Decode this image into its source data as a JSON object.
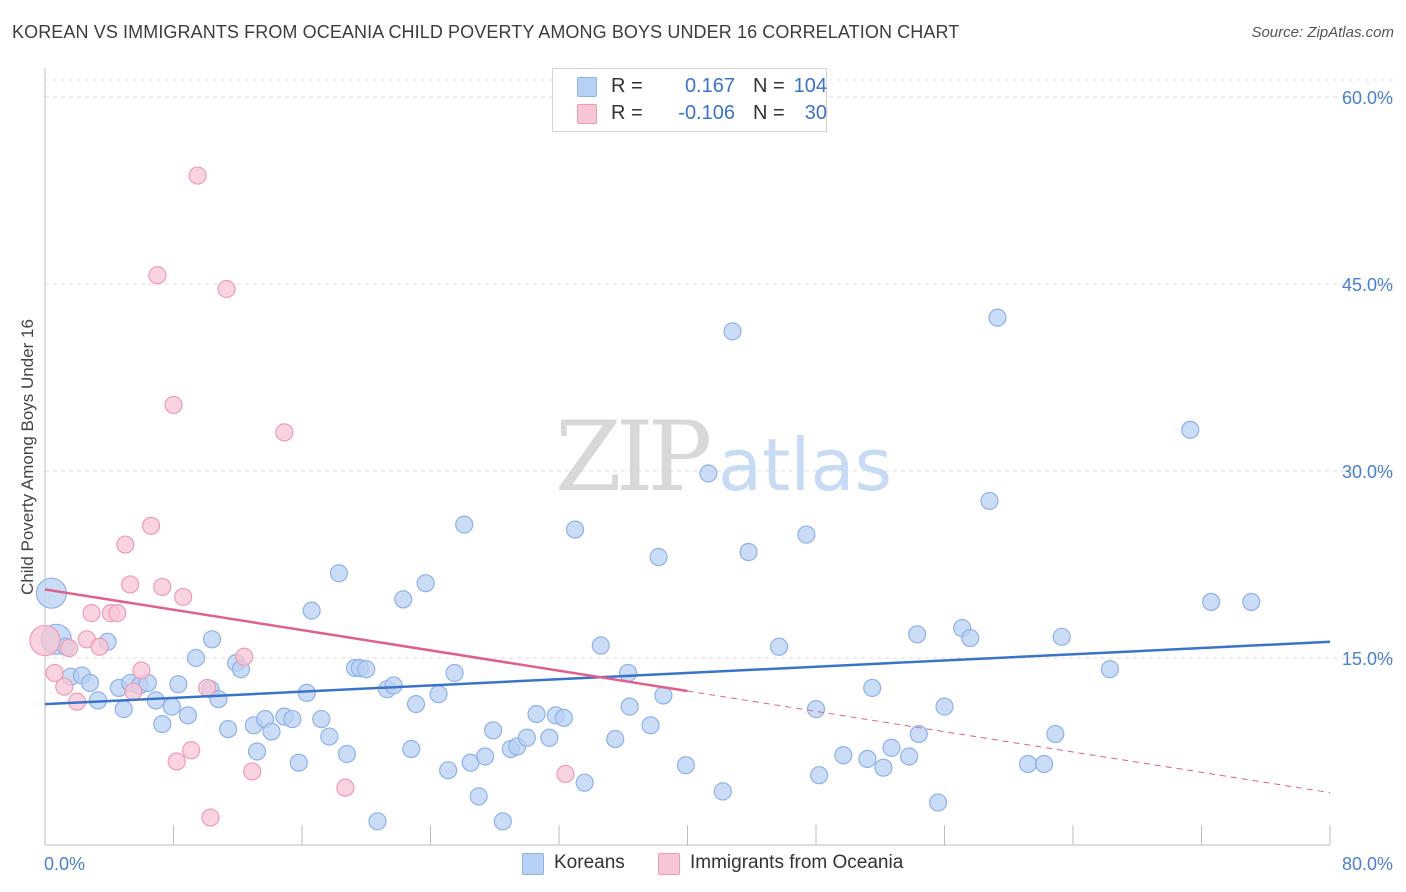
{
  "header": {
    "title": "KOREAN VS IMMIGRANTS FROM OCEANIA CHILD POVERTY AMONG BOYS UNDER 16 CORRELATION CHART",
    "source": "Source: ZipAtlas.com"
  },
  "watermark": {
    "zip": "ZIP",
    "atlas": "atlas"
  },
  "legend": {
    "rows": [
      {
        "r_label": "R =",
        "r_value": "0.167",
        "n_label": "N =",
        "n_value": "104",
        "color": "#b8d0f3",
        "border": "#8fb2e8"
      },
      {
        "r_label": "R =",
        "r_value": "-0.106",
        "n_label": "N =",
        "n_value": "30",
        "color": "#f7c6d5",
        "border": "#ee9cb6"
      }
    ]
  },
  "chart_data": {
    "type": "scatter",
    "title": "KOREAN VS IMMIGRANTS FROM OCEANIA CHILD POVERTY AMONG BOYS UNDER 16 CORRELATION CHART",
    "xlabel": "",
    "ylabel": "Child Poverty Among Boys Under 16",
    "xlim": [
      0,
      80
    ],
    "ylim": [
      0,
      60
    ],
    "x_tick_labels": [
      "0.0%",
      "80.0%"
    ],
    "y_ticks": [
      15,
      30,
      45,
      60
    ],
    "y_tick_labels": [
      "15.0%",
      "30.0%",
      "45.0%",
      "60.0%"
    ],
    "grid": true,
    "legend_position": "top-center",
    "series": [
      {
        "name": "Koreans",
        "color": "#8fb2e8",
        "fill": "#b8d0f3",
        "trend": {
          "x": [
            0,
            80
          ],
          "y": [
            11.3,
            16.3
          ],
          "color": "#3b73c9",
          "dashed_from": null
        },
        "points": [
          [
            0.4,
            20.2,
            1
          ],
          [
            0.7,
            16.5,
            1
          ],
          [
            1.3,
            15.9,
            0
          ],
          [
            1.6,
            13.5,
            0
          ],
          [
            2.3,
            13.6,
            0
          ],
          [
            2.8,
            13.0,
            0
          ],
          [
            3.3,
            11.6,
            0
          ],
          [
            3.9,
            16.3,
            0
          ],
          [
            4.6,
            12.6,
            0
          ],
          [
            4.9,
            10.9,
            0
          ],
          [
            5.3,
            13.0,
            0
          ],
          [
            5.9,
            12.8,
            0
          ],
          [
            6.4,
            13.0,
            0
          ],
          [
            6.9,
            11.6,
            0
          ],
          [
            7.3,
            9.7,
            0
          ],
          [
            7.9,
            11.1,
            0
          ],
          [
            8.3,
            12.9,
            0
          ],
          [
            8.9,
            10.4,
            0
          ],
          [
            9.4,
            15.0,
            0
          ],
          [
            10.3,
            12.5,
            0
          ],
          [
            10.4,
            16.5,
            0
          ],
          [
            10.8,
            11.7,
            0
          ],
          [
            11.4,
            9.3,
            0
          ],
          [
            11.9,
            14.6,
            0
          ],
          [
            12.2,
            14.1,
            0
          ],
          [
            13.0,
            9.6,
            0
          ],
          [
            13.2,
            7.5,
            0
          ],
          [
            13.7,
            10.1,
            0
          ],
          [
            14.1,
            9.1,
            0
          ],
          [
            14.9,
            10.3,
            0
          ],
          [
            15.4,
            10.1,
            0
          ],
          [
            15.8,
            6.6,
            0
          ],
          [
            16.3,
            12.2,
            0
          ],
          [
            16.6,
            18.8,
            0
          ],
          [
            17.2,
            10.1,
            0
          ],
          [
            17.7,
            8.7,
            0
          ],
          [
            18.3,
            21.8,
            0
          ],
          [
            18.8,
            7.3,
            0
          ],
          [
            19.3,
            14.2,
            0
          ],
          [
            19.6,
            14.2,
            0
          ],
          [
            20.0,
            14.1,
            0
          ],
          [
            20.7,
            1.9,
            0
          ],
          [
            21.3,
            12.5,
            0
          ],
          [
            21.7,
            12.8,
            0
          ],
          [
            22.3,
            19.7,
            0
          ],
          [
            22.8,
            7.7,
            0
          ],
          [
            23.1,
            11.3,
            0
          ],
          [
            23.7,
            21.0,
            0
          ],
          [
            24.5,
            12.1,
            0
          ],
          [
            25.1,
            6.0,
            0
          ],
          [
            25.5,
            13.8,
            0
          ],
          [
            26.1,
            25.7,
            0
          ],
          [
            26.5,
            6.6,
            0
          ],
          [
            27.0,
            3.9,
            0
          ],
          [
            27.4,
            7.1,
            0
          ],
          [
            27.9,
            9.2,
            0
          ],
          [
            28.5,
            1.9,
            0
          ],
          [
            29.0,
            7.7,
            0
          ],
          [
            29.4,
            7.9,
            0
          ],
          [
            30.0,
            8.6,
            0
          ],
          [
            30.6,
            10.5,
            0
          ],
          [
            31.4,
            8.6,
            0
          ],
          [
            31.8,
            10.4,
            0
          ],
          [
            32.3,
            10.2,
            0
          ],
          [
            33.0,
            25.3,
            0
          ],
          [
            33.6,
            5.0,
            0
          ],
          [
            34.6,
            16.0,
            0
          ],
          [
            35.5,
            8.5,
            0
          ],
          [
            36.3,
            13.8,
            0
          ],
          [
            36.4,
            11.1,
            0
          ],
          [
            37.7,
            9.6,
            0
          ],
          [
            38.2,
            23.1,
            0
          ],
          [
            38.5,
            12.0,
            0
          ],
          [
            39.9,
            6.4,
            0
          ],
          [
            41.3,
            29.8,
            0
          ],
          [
            42.2,
            4.3,
            0
          ],
          [
            42.8,
            41.2,
            0
          ],
          [
            43.8,
            23.5,
            0
          ],
          [
            45.7,
            15.9,
            0
          ],
          [
            47.4,
            24.9,
            0
          ],
          [
            48.0,
            10.9,
            0
          ],
          [
            48.2,
            5.6,
            0
          ],
          [
            49.7,
            7.2,
            0
          ],
          [
            51.2,
            6.9,
            0
          ],
          [
            51.5,
            12.6,
            0
          ],
          [
            52.2,
            6.2,
            0
          ],
          [
            52.7,
            7.8,
            0
          ],
          [
            53.8,
            7.1,
            0
          ],
          [
            54.3,
            16.9,
            0
          ],
          [
            54.4,
            8.9,
            0
          ],
          [
            55.6,
            3.4,
            0
          ],
          [
            56.0,
            11.1,
            0
          ],
          [
            57.1,
            17.4,
            0
          ],
          [
            57.6,
            16.6,
            0
          ],
          [
            58.8,
            27.6,
            0
          ],
          [
            59.3,
            42.3,
            0
          ],
          [
            61.2,
            6.5,
            0
          ],
          [
            62.2,
            6.5,
            0
          ],
          [
            62.9,
            8.9,
            0
          ],
          [
            63.3,
            16.7,
            0
          ],
          [
            66.3,
            14.1,
            0
          ],
          [
            71.3,
            33.3,
            0
          ],
          [
            72.6,
            19.5,
            0
          ],
          [
            75.1,
            19.5,
            0
          ]
        ]
      },
      {
        "name": "Immigrants from Oceania",
        "color": "#ee9cb6",
        "fill": "#f7c6d5",
        "trend": {
          "x": [
            0,
            80
          ],
          "y": [
            20.5,
            4.2
          ],
          "color": "#e0608c",
          "dashed_from": 40
        },
        "points": [
          [
            0.0,
            16.4,
            1
          ],
          [
            0.6,
            13.8,
            0
          ],
          [
            1.2,
            12.7,
            0
          ],
          [
            1.5,
            15.8,
            0
          ],
          [
            2.0,
            11.5,
            0
          ],
          [
            2.6,
            16.5,
            0
          ],
          [
            2.9,
            18.6,
            0
          ],
          [
            3.4,
            15.9,
            0
          ],
          [
            4.1,
            18.6,
            0
          ],
          [
            4.5,
            18.6,
            0
          ],
          [
            5.0,
            24.1,
            0
          ],
          [
            5.3,
            20.9,
            0
          ],
          [
            5.5,
            12.3,
            0
          ],
          [
            6.0,
            14.0,
            0
          ],
          [
            6.6,
            25.6,
            0
          ],
          [
            7.0,
            45.7,
            0
          ],
          [
            7.3,
            20.7,
            0
          ],
          [
            8.0,
            35.3,
            0
          ],
          [
            8.2,
            6.7,
            0
          ],
          [
            8.6,
            19.9,
            0
          ],
          [
            9.1,
            7.6,
            0
          ],
          [
            9.5,
            53.7,
            0
          ],
          [
            10.1,
            12.6,
            0
          ],
          [
            10.3,
            2.2,
            0
          ],
          [
            11.3,
            44.6,
            0
          ],
          [
            12.4,
            15.1,
            0
          ],
          [
            12.9,
            5.9,
            0
          ],
          [
            14.9,
            33.1,
            0
          ],
          [
            18.7,
            4.6,
            0
          ],
          [
            32.4,
            5.7,
            0
          ]
        ]
      }
    ]
  },
  "bottom_legend": {
    "items": [
      {
        "label": "Koreans",
        "color": "#b8d0f3",
        "border": "#8fb2e8"
      },
      {
        "label": "Immigrants from Oceania",
        "color": "#f7c6d5",
        "border": "#ee9cb6"
      }
    ]
  }
}
